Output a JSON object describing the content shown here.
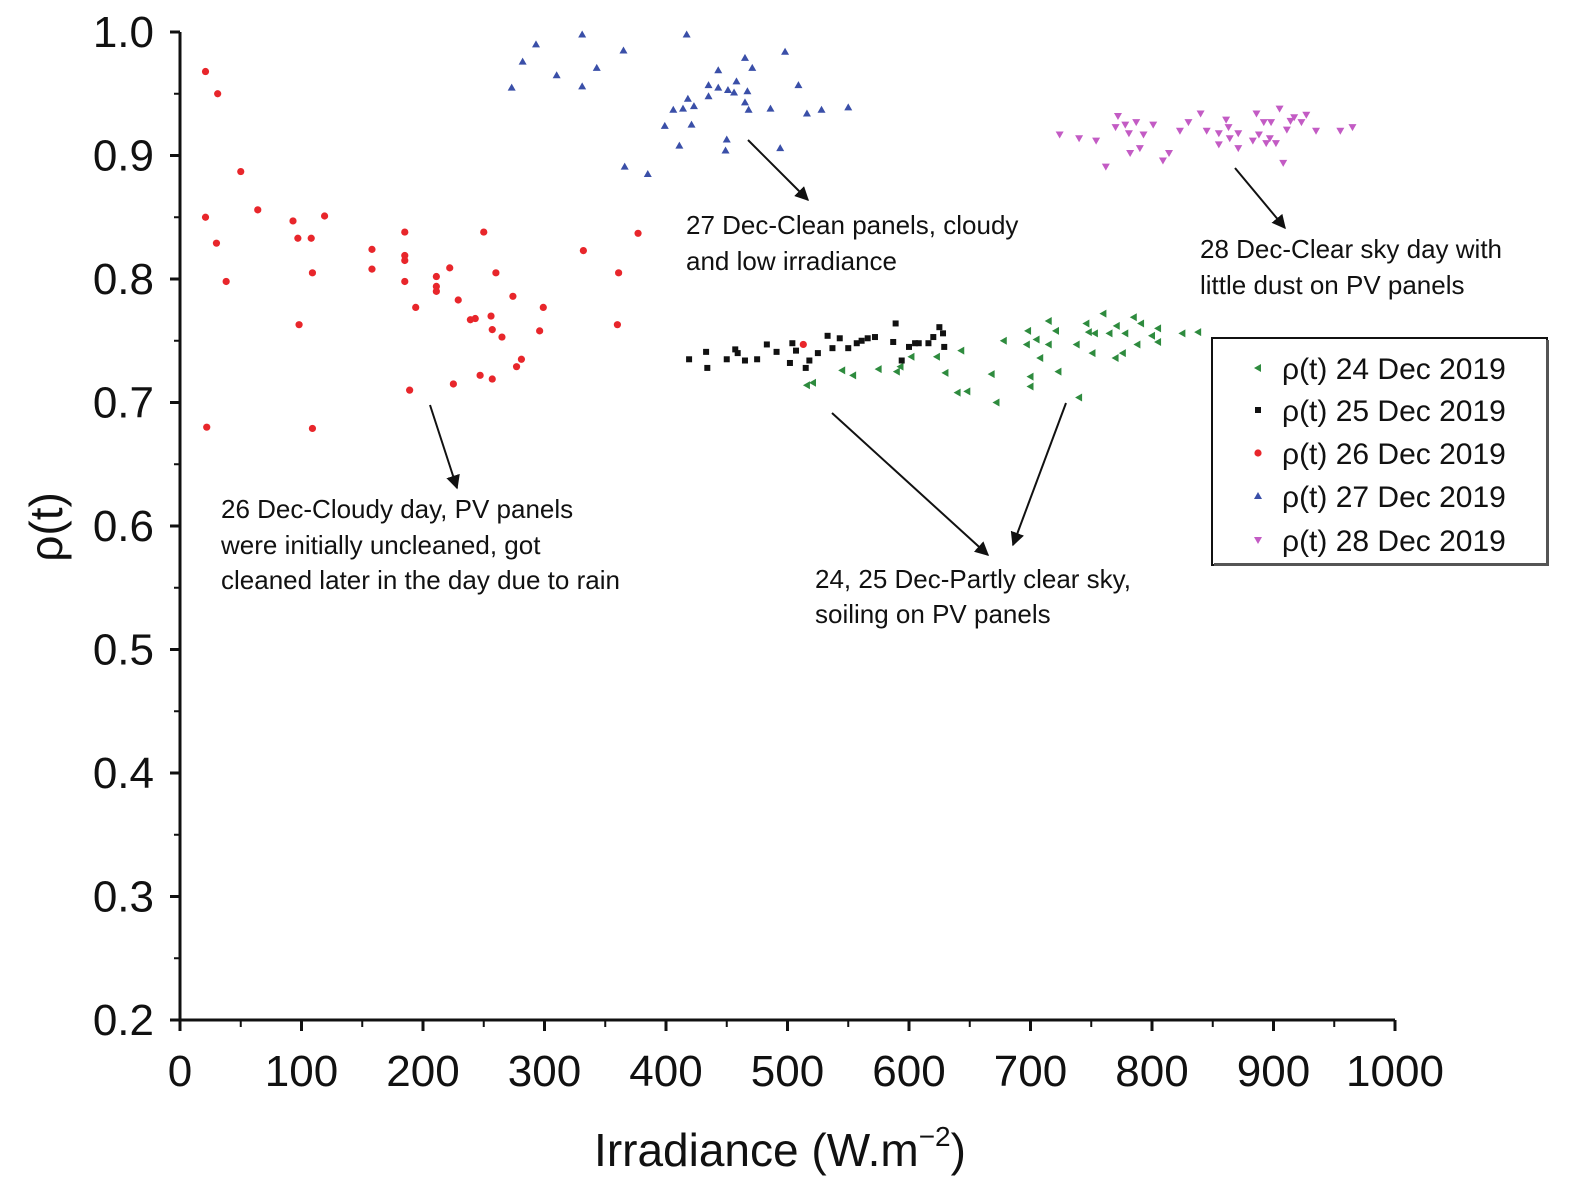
{
  "chart_data": {
    "type": "scatter",
    "xlabel_main": "Irradiance (W.m",
    "xlabel_sup": "−2",
    "xlabel_close": ")",
    "ylabel": "ρ(t)",
    "xlim": [
      0,
      1000
    ],
    "ylim": [
      0.2,
      1.0
    ],
    "xticks": [
      "0",
      "100",
      "200",
      "300",
      "400",
      "500",
      "600",
      "700",
      "800",
      "900",
      "1000"
    ],
    "yticks": [
      "0.2",
      "0.3",
      "0.4",
      "0.5",
      "0.6",
      "0.7",
      "0.8",
      "0.9",
      "1.0"
    ],
    "grid": false,
    "legend_position": "right",
    "series": [
      {
        "name": "ρ(t) 24 Dec 2019",
        "color": "#2e8b3e",
        "marker": "triangle-left",
        "points": [
          [
            516,
            0.714
          ],
          [
            521,
            0.716
          ],
          [
            545,
            0.726
          ],
          [
            554,
            0.722
          ],
          [
            575,
            0.727
          ],
          [
            590,
            0.725
          ],
          [
            593,
            0.729
          ],
          [
            602,
            0.737
          ],
          [
            623,
            0.737
          ],
          [
            630,
            0.724
          ],
          [
            643,
            0.742
          ],
          [
            640,
            0.708
          ],
          [
            648,
            0.709
          ],
          [
            668,
            0.723
          ],
          [
            672,
            0.7
          ],
          [
            678,
            0.75
          ],
          [
            698,
            0.758
          ],
          [
            697,
            0.747
          ],
          [
            705,
            0.751
          ],
          [
            715,
            0.747
          ],
          [
            715,
            0.766
          ],
          [
            721,
            0.758
          ],
          [
            708,
            0.736
          ],
          [
            700,
            0.721
          ],
          [
            700,
            0.713
          ],
          [
            723,
            0.725
          ],
          [
            738,
            0.747
          ],
          [
            740,
            0.704
          ],
          [
            746,
            0.764
          ],
          [
            748,
            0.757
          ],
          [
            753,
            0.756
          ],
          [
            760,
            0.772
          ],
          [
            751,
            0.74
          ],
          [
            765,
            0.756
          ],
          [
            771,
            0.762
          ],
          [
            778,
            0.756
          ],
          [
            770,
            0.736
          ],
          [
            776,
            0.74
          ],
          [
            785,
            0.769
          ],
          [
            791,
            0.764
          ],
          [
            788,
            0.747
          ],
          [
            800,
            0.754
          ],
          [
            805,
            0.76
          ],
          [
            805,
            0.749
          ],
          [
            825,
            0.756
          ],
          [
            838,
            0.757
          ]
        ]
      },
      {
        "name": "ρ(t) 25 Dec 2019",
        "color": "#111111",
        "marker": "square",
        "points": [
          [
            419,
            0.735
          ],
          [
            433,
            0.741
          ],
          [
            434,
            0.728
          ],
          [
            450,
            0.735
          ],
          [
            457,
            0.743
          ],
          [
            459,
            0.74
          ],
          [
            465,
            0.734
          ],
          [
            475,
            0.735
          ],
          [
            483,
            0.747
          ],
          [
            491,
            0.741
          ],
          [
            502,
            0.732
          ],
          [
            504,
            0.748
          ],
          [
            507,
            0.742
          ],
          [
            515,
            0.728
          ],
          [
            518,
            0.734
          ],
          [
            525,
            0.74
          ],
          [
            533,
            0.754
          ],
          [
            537,
            0.744
          ],
          [
            543,
            0.752
          ],
          [
            550,
            0.744
          ],
          [
            557,
            0.748
          ],
          [
            561,
            0.75
          ],
          [
            566,
            0.752
          ],
          [
            572,
            0.753
          ],
          [
            587,
            0.749
          ],
          [
            589,
            0.764
          ],
          [
            594,
            0.734
          ],
          [
            600,
            0.745
          ],
          [
            605,
            0.748
          ],
          [
            608,
            0.748
          ],
          [
            616,
            0.748
          ],
          [
            620,
            0.753
          ],
          [
            625,
            0.761
          ],
          [
            628,
            0.756
          ],
          [
            629,
            0.745
          ]
        ]
      },
      {
        "name": "ρ(t) 26 Dec 2019",
        "color": "#e8262b",
        "marker": "circle",
        "points": [
          [
            21,
            0.968
          ],
          [
            31,
            0.95
          ],
          [
            50,
            0.887
          ],
          [
            21,
            0.85
          ],
          [
            64,
            0.856
          ],
          [
            93,
            0.847
          ],
          [
            119,
            0.851
          ],
          [
            30,
            0.829
          ],
          [
            97,
            0.833
          ],
          [
            108,
            0.833
          ],
          [
            38,
            0.798
          ],
          [
            109,
            0.805
          ],
          [
            98,
            0.763
          ],
          [
            22,
            0.68
          ],
          [
            109,
            0.679
          ],
          [
            158,
            0.824
          ],
          [
            158,
            0.808
          ],
          [
            185,
            0.838
          ],
          [
            185,
            0.819
          ],
          [
            185,
            0.815
          ],
          [
            185,
            0.798
          ],
          [
            194,
            0.777
          ],
          [
            189,
            0.71
          ],
          [
            211,
            0.802
          ],
          [
            211,
            0.794
          ],
          [
            211,
            0.79
          ],
          [
            222,
            0.809
          ],
          [
            229,
            0.783
          ],
          [
            239,
            0.767
          ],
          [
            243,
            0.768
          ],
          [
            225,
            0.715
          ],
          [
            250,
            0.838
          ],
          [
            260,
            0.805
          ],
          [
            256,
            0.77
          ],
          [
            257,
            0.759
          ],
          [
            265,
            0.753
          ],
          [
            247,
            0.722
          ],
          [
            257,
            0.719
          ],
          [
            274,
            0.786
          ],
          [
            299,
            0.777
          ],
          [
            296,
            0.758
          ],
          [
            281,
            0.735
          ],
          [
            277,
            0.729
          ],
          [
            332,
            0.823
          ],
          [
            361,
            0.805
          ],
          [
            360,
            0.763
          ],
          [
            377,
            0.837
          ],
          [
            513,
            0.747
          ]
        ]
      },
      {
        "name": "ρ(t) 27 Dec 2019",
        "color": "#3a4fa8",
        "marker": "triangle-up",
        "points": [
          [
            273,
            0.955
          ],
          [
            282,
            0.976
          ],
          [
            293,
            0.99
          ],
          [
            310,
            0.965
          ],
          [
            331,
            0.998
          ],
          [
            331,
            0.956
          ],
          [
            343,
            0.971
          ],
          [
            365,
            0.985
          ],
          [
            366,
            0.891
          ],
          [
            385,
            0.885
          ],
          [
            417,
            0.998
          ],
          [
            399,
            0.924
          ],
          [
            411,
            0.908
          ],
          [
            406,
            0.937
          ],
          [
            414,
            0.938
          ],
          [
            418,
            0.946
          ],
          [
            423,
            0.94
          ],
          [
            421,
            0.925
          ],
          [
            435,
            0.957
          ],
          [
            435,
            0.948
          ],
          [
            443,
            0.969
          ],
          [
            443,
            0.955
          ],
          [
            451,
            0.953
          ],
          [
            456,
            0.951
          ],
          [
            458,
            0.96
          ],
          [
            450,
            0.913
          ],
          [
            449,
            0.904
          ],
          [
            465,
            0.979
          ],
          [
            471,
            0.971
          ],
          [
            467,
            0.952
          ],
          [
            465,
            0.943
          ],
          [
            468,
            0.937
          ],
          [
            486,
            0.938
          ],
          [
            494,
            0.906
          ],
          [
            498,
            0.984
          ],
          [
            509,
            0.957
          ],
          [
            516,
            0.934
          ],
          [
            528,
            0.937
          ],
          [
            550,
            0.939
          ]
        ]
      },
      {
        "name": "ρ(t) 28 Dec 2019",
        "color": "#c35bc4",
        "marker": "triangle-down",
        "points": [
          [
            724,
            0.917
          ],
          [
            740,
            0.914
          ],
          [
            754,
            0.912
          ],
          [
            762,
            0.891
          ],
          [
            772,
            0.932
          ],
          [
            770,
            0.923
          ],
          [
            778,
            0.925
          ],
          [
            787,
            0.927
          ],
          [
            781,
            0.918
          ],
          [
            793,
            0.917
          ],
          [
            801,
            0.925
          ],
          [
            782,
            0.902
          ],
          [
            790,
            0.906
          ],
          [
            814,
            0.902
          ],
          [
            809,
            0.896
          ],
          [
            823,
            0.92
          ],
          [
            830,
            0.927
          ],
          [
            840,
            0.934
          ],
          [
            845,
            0.92
          ],
          [
            855,
            0.918
          ],
          [
            855,
            0.909
          ],
          [
            861,
            0.929
          ],
          [
            863,
            0.923
          ],
          [
            864,
            0.914
          ],
          [
            871,
            0.918
          ],
          [
            871,
            0.906
          ],
          [
            883,
            0.912
          ],
          [
            888,
            0.917
          ],
          [
            886,
            0.934
          ],
          [
            892,
            0.927
          ],
          [
            898,
            0.927
          ],
          [
            897,
            0.914
          ],
          [
            902,
            0.91
          ],
          [
            894,
            0.91
          ],
          [
            905,
            0.938
          ],
          [
            908,
            0.894
          ],
          [
            911,
            0.921
          ],
          [
            914,
            0.928
          ],
          [
            917,
            0.931
          ],
          [
            923,
            0.927
          ],
          [
            927,
            0.933
          ],
          [
            935,
            0.92
          ],
          [
            955,
            0.92
          ],
          [
            965,
            0.923
          ]
        ]
      }
    ],
    "annotations": [
      {
        "id": "dec27",
        "lines": [
          "27 Dec-Clean panels, cloudy",
          "and low irradiance"
        ]
      },
      {
        "id": "dec28",
        "lines": [
          "28 Dec-Clear sky day with",
          "little dust on PV panels"
        ]
      },
      {
        "id": "dec26",
        "lines": [
          "26 Dec-Cloudy day, PV panels",
          "were initially uncleaned, got",
          "cleaned later in the day due to rain"
        ]
      },
      {
        "id": "dec2425",
        "lines": [
          "24, 25 Dec-Partly clear sky,",
          "soiling on PV panels"
        ]
      }
    ]
  }
}
